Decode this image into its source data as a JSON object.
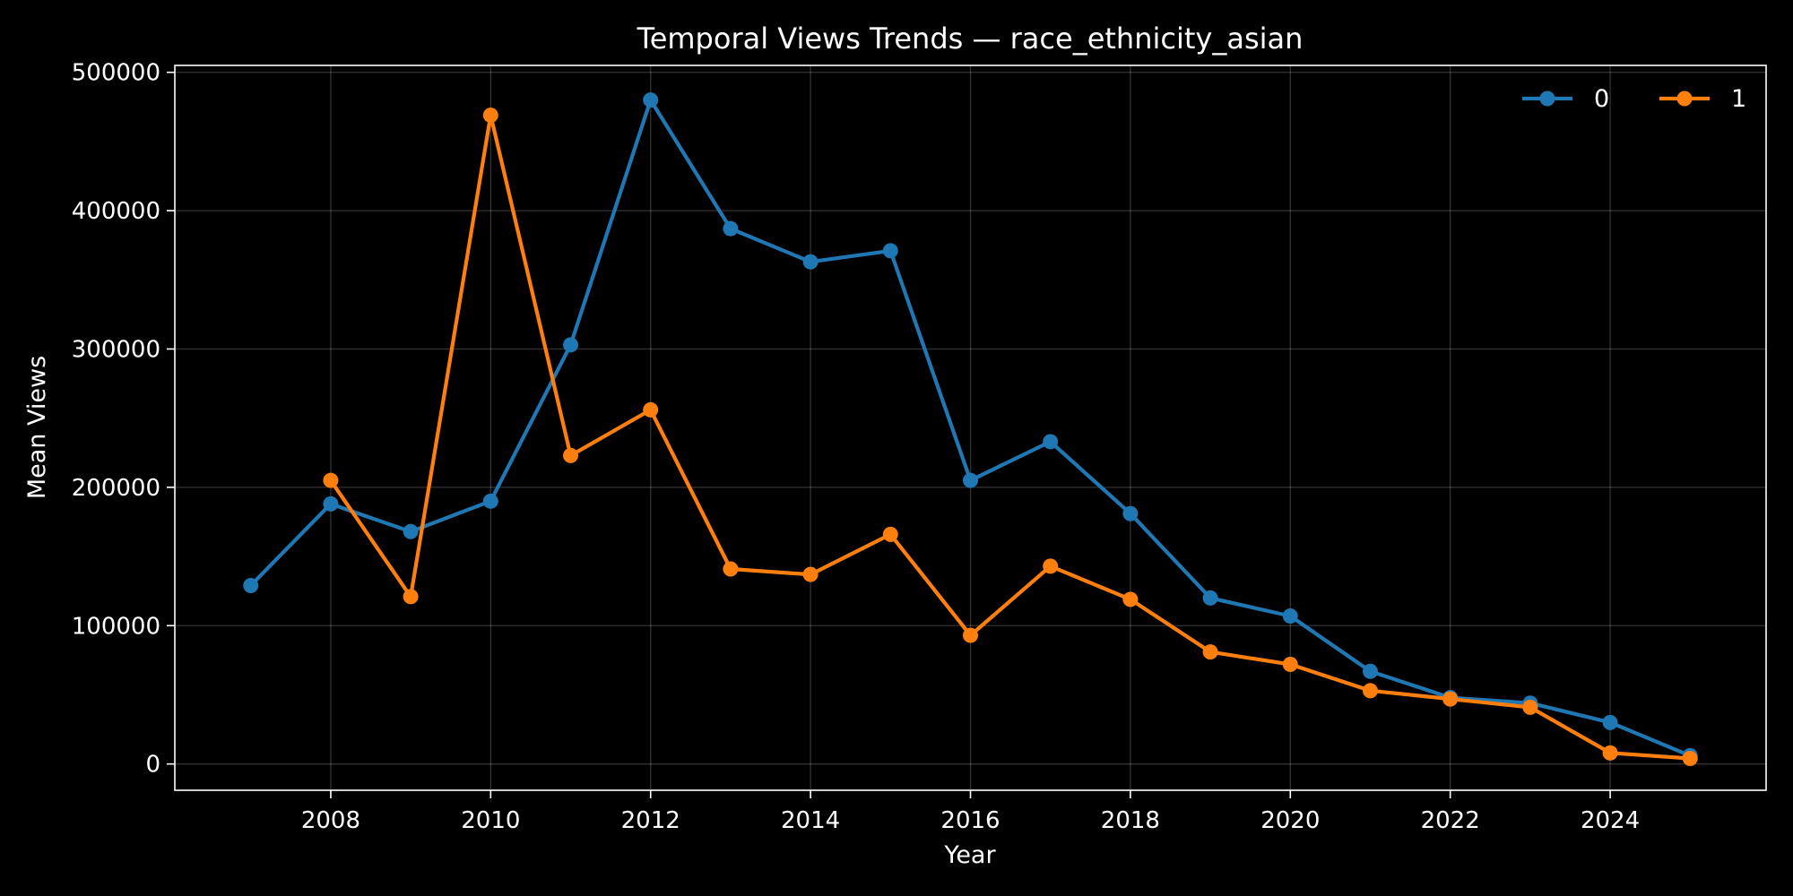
{
  "chart_data": {
    "type": "line",
    "title": "Temporal Views Trends — race_ethnicity_asian",
    "xlabel": "Year",
    "ylabel": "Mean Views",
    "xlim": [
      2006.05,
      2025.95
    ],
    "ylim": [
      -19000,
      505000
    ],
    "x_ticks": [
      2008,
      2010,
      2012,
      2014,
      2016,
      2018,
      2020,
      2022,
      2024
    ],
    "y_ticks": [
      0,
      100000,
      200000,
      300000,
      400000,
      500000
    ],
    "grid": true,
    "legend_placement": "top-right",
    "background": "#000000",
    "series": [
      {
        "name": "0",
        "color": "#1f77b4",
        "x": [
          2007,
          2008,
          2009,
          2010,
          2011,
          2012,
          2013,
          2014,
          2015,
          2016,
          2017,
          2018,
          2019,
          2020,
          2021,
          2022,
          2023,
          2024,
          2025
        ],
        "y": [
          129000,
          188000,
          168000,
          190000,
          303000,
          480000,
          387000,
          363000,
          371000,
          205000,
          233000,
          181000,
          120000,
          107000,
          67000,
          48000,
          44000,
          30000,
          6000
        ]
      },
      {
        "name": "1",
        "color": "#ff7f0e",
        "x": [
          2008,
          2009,
          2010,
          2011,
          2012,
          2013,
          2014,
          2015,
          2016,
          2017,
          2018,
          2019,
          2020,
          2021,
          2022,
          2023,
          2024,
          2025
        ],
        "y": [
          205000,
          121000,
          469000,
          223000,
          256000,
          141000,
          137000,
          166000,
          93000,
          143000,
          119000,
          81000,
          72000,
          53000,
          47000,
          41000,
          8000,
          4000
        ]
      }
    ]
  }
}
